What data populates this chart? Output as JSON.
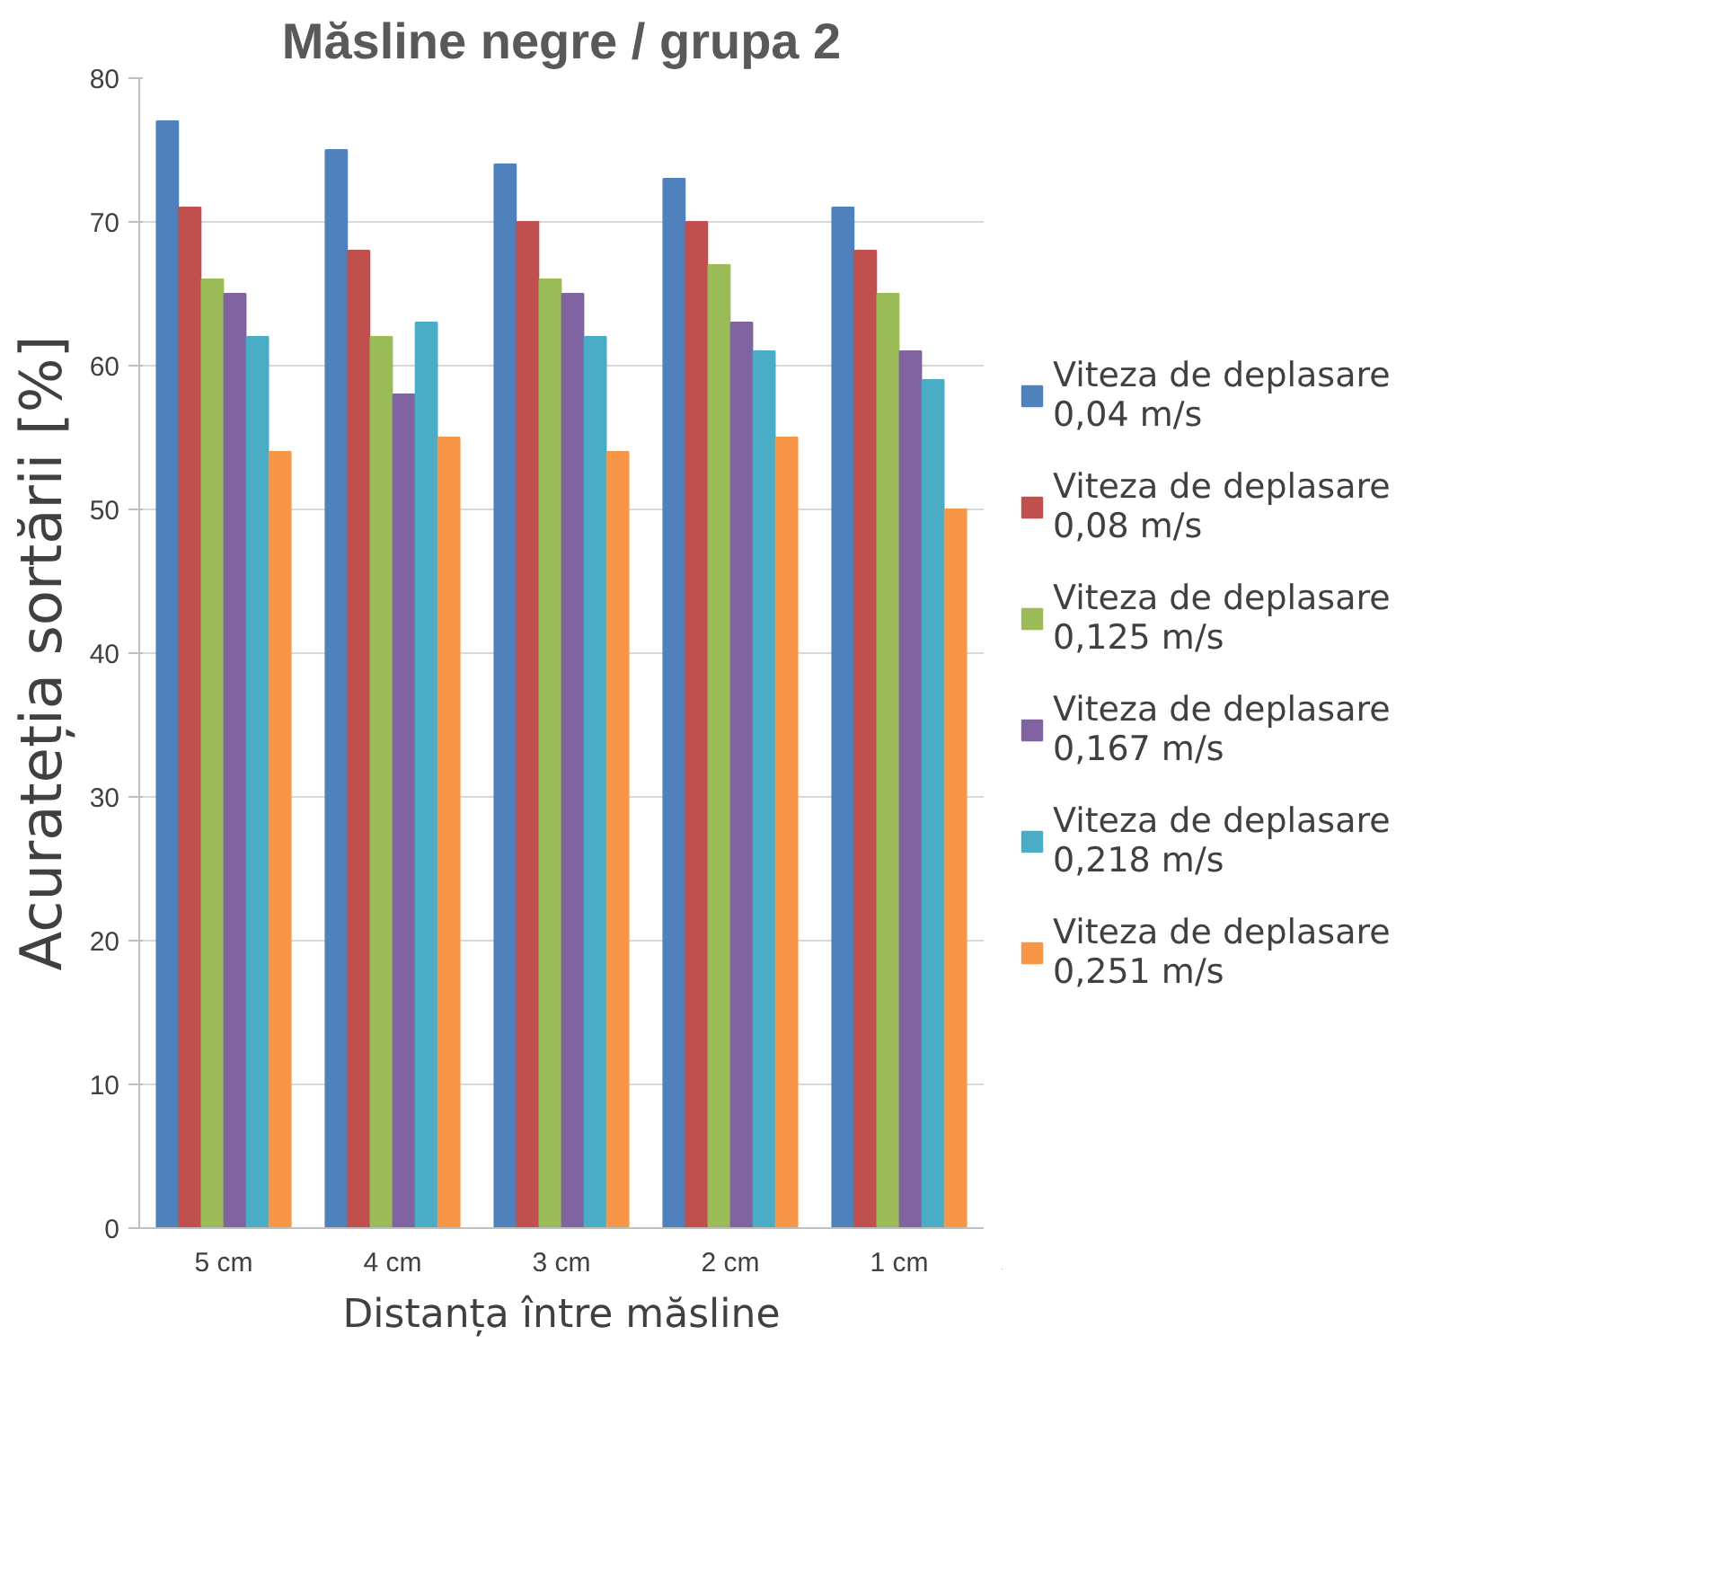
{
  "chart_data": {
    "type": "bar",
    "title": "Măsline negre / grupa 2",
    "xlabel": "Distanța între măsline",
    "ylabel": "Acurateția sortării [%]",
    "categories": [
      "5 cm",
      "4 cm",
      "3 cm",
      "2 cm",
      "1 cm"
    ],
    "series": [
      {
        "name": "Viteza de deplasare 0,04 m/s",
        "color": "#4f81bd",
        "values": [
          77,
          75,
          74,
          73,
          71
        ]
      },
      {
        "name": "Viteza de deplasare 0,08 m/s",
        "color": "#c0504d",
        "values": [
          71,
          68,
          70,
          70,
          68
        ]
      },
      {
        "name": "Viteza de deplasare 0,125 m/s",
        "color": "#9bbb59",
        "values": [
          66,
          62,
          66,
          67,
          65
        ]
      },
      {
        "name": "Viteza de deplasare 0,167 m/s",
        "color": "#8064a2",
        "values": [
          65,
          58,
          65,
          63,
          61
        ]
      },
      {
        "name": "Viteza de deplasare 0,218 m/s",
        "color": "#4bacc6",
        "values": [
          62,
          63,
          62,
          61,
          59
        ]
      },
      {
        "name": "Viteza de deplasare 0,251 m/s",
        "color": "#f79646",
        "values": [
          54,
          55,
          54,
          55,
          50
        ]
      }
    ],
    "ylim": [
      0,
      80
    ],
    "yticks": [
      0,
      10,
      20,
      30,
      40,
      50,
      60,
      70,
      80
    ],
    "grid": "y",
    "legend": "right"
  }
}
